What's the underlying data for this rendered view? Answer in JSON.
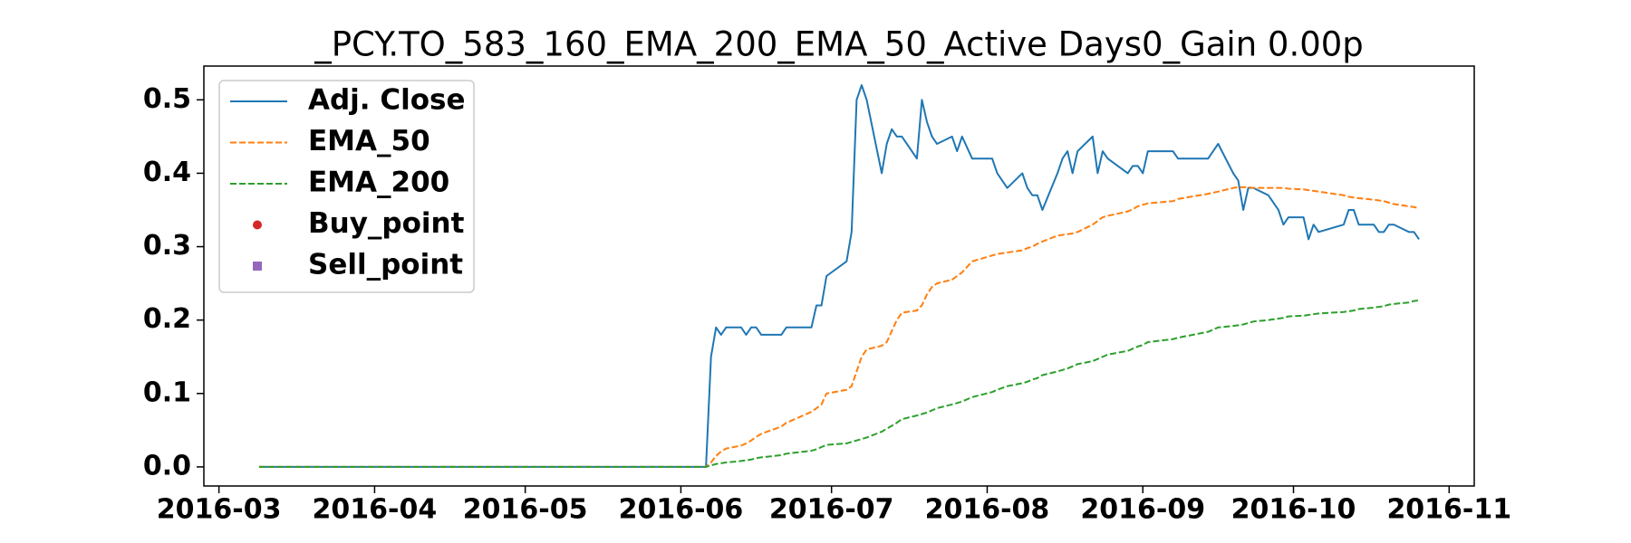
{
  "chart_data": {
    "type": "line",
    "title": "_PCY.TO_583_160_EMA_200_EMA_50_Active Days0_Gain    0.00p",
    "x": [
      "2016-03-09",
      "2016-06-06",
      "2016-06-07",
      "2016-06-08",
      "2016-06-09",
      "2016-06-10",
      "2016-06-13",
      "2016-06-14",
      "2016-06-15",
      "2016-06-16",
      "2016-06-17",
      "2016-06-21",
      "2016-06-22",
      "2016-06-27",
      "2016-06-28",
      "2016-06-29",
      "2016-06-30",
      "2016-07-04",
      "2016-07-05",
      "2016-07-06",
      "2016-07-07",
      "2016-07-08",
      "2016-07-11",
      "2016-07-12",
      "2016-07-13",
      "2016-07-14",
      "2016-07-15",
      "2016-07-18",
      "2016-07-19",
      "2016-07-20",
      "2016-07-21",
      "2016-07-22",
      "2016-07-25",
      "2016-07-26",
      "2016-07-27",
      "2016-07-29",
      "2016-08-02",
      "2016-08-03",
      "2016-08-05",
      "2016-08-08",
      "2016-08-09",
      "2016-08-10",
      "2016-08-11",
      "2016-08-12",
      "2016-08-15",
      "2016-08-16",
      "2016-08-17",
      "2016-08-18",
      "2016-08-19",
      "2016-08-22",
      "2016-08-23",
      "2016-08-24",
      "2016-08-25",
      "2016-08-29",
      "2016-08-30",
      "2016-08-31",
      "2016-09-01",
      "2016-09-02",
      "2016-09-07",
      "2016-09-08",
      "2016-09-14",
      "2016-09-16",
      "2016-09-19",
      "2016-09-20",
      "2016-09-21",
      "2016-09-22",
      "2016-09-23",
      "2016-09-26",
      "2016-09-28",
      "2016-09-29",
      "2016-09-30",
      "2016-10-03",
      "2016-10-04",
      "2016-10-05",
      "2016-10-06",
      "2016-10-11",
      "2016-10-12",
      "2016-10-13",
      "2016-10-14",
      "2016-10-17",
      "2016-10-18",
      "2016-10-19",
      "2016-10-20",
      "2016-10-21",
      "2016-10-24",
      "2016-10-25",
      "2016-10-26"
    ],
    "series": [
      {
        "name": "Adj. Close",
        "color": "#1f77b4",
        "dash": false,
        "values": [
          0,
          0,
          0.15,
          0.19,
          0.18,
          0.19,
          0.19,
          0.18,
          0.19,
          0.19,
          0.18,
          0.18,
          0.19,
          0.19,
          0.22,
          0.22,
          0.26,
          0.28,
          0.32,
          0.5,
          0.52,
          0.5,
          0.4,
          0.44,
          0.46,
          0.45,
          0.45,
          0.42,
          0.5,
          0.47,
          0.45,
          0.44,
          0.45,
          0.43,
          0.45,
          0.42,
          0.42,
          0.4,
          0.38,
          0.4,
          0.38,
          0.37,
          0.37,
          0.35,
          0.4,
          0.42,
          0.43,
          0.4,
          0.43,
          0.45,
          0.4,
          0.43,
          0.42,
          0.4,
          0.41,
          0.41,
          0.4,
          0.43,
          0.43,
          0.42,
          0.42,
          0.44,
          0.4,
          0.39,
          0.35,
          0.38,
          0.38,
          0.37,
          0.35,
          0.33,
          0.34,
          0.34,
          0.31,
          0.33,
          0.32,
          0.33,
          0.35,
          0.35,
          0.33,
          0.33,
          0.32,
          0.32,
          0.33,
          0.33,
          0.32,
          0.32,
          0.31
        ]
      },
      {
        "name": "EMA_50",
        "color": "#ff7f0e",
        "dash": true,
        "values": [
          0,
          0,
          0.006,
          0.015,
          0.021,
          0.025,
          0.029,
          0.032,
          0.036,
          0.041,
          0.045,
          0.055,
          0.06,
          0.075,
          0.08,
          0.085,
          0.1,
          0.105,
          0.11,
          0.13,
          0.15,
          0.16,
          0.165,
          0.17,
          0.185,
          0.2,
          0.21,
          0.213,
          0.22,
          0.235,
          0.245,
          0.25,
          0.255,
          0.26,
          0.265,
          0.28,
          0.288,
          0.29,
          0.292,
          0.295,
          0.298,
          0.3,
          0.304,
          0.307,
          0.315,
          0.316,
          0.317,
          0.318,
          0.32,
          0.33,
          0.335,
          0.34,
          0.342,
          0.348,
          0.351,
          0.355,
          0.357,
          0.359,
          0.362,
          0.365,
          0.372,
          0.375,
          0.38,
          0.381,
          0.381,
          0.381,
          0.38,
          0.38,
          0.38,
          0.38,
          0.379,
          0.378,
          0.377,
          0.376,
          0.375,
          0.37,
          0.368,
          0.367,
          0.366,
          0.364,
          0.363,
          0.362,
          0.36,
          0.358,
          0.355,
          0.354,
          0.352
        ]
      },
      {
        "name": "EMA_200",
        "color": "#2ca02c",
        "dash": true,
        "values": [
          0,
          0,
          0.002,
          0.004,
          0.005,
          0.006,
          0.008,
          0.009,
          0.01,
          0.012,
          0.013,
          0.016,
          0.018,
          0.022,
          0.024,
          0.027,
          0.03,
          0.032,
          0.034,
          0.036,
          0.038,
          0.04,
          0.048,
          0.052,
          0.056,
          0.06,
          0.065,
          0.07,
          0.072,
          0.074,
          0.077,
          0.08,
          0.085,
          0.087,
          0.089,
          0.095,
          0.102,
          0.105,
          0.11,
          0.114,
          0.116,
          0.119,
          0.121,
          0.125,
          0.13,
          0.132,
          0.134,
          0.137,
          0.14,
          0.144,
          0.147,
          0.15,
          0.153,
          0.158,
          0.161,
          0.164,
          0.166,
          0.17,
          0.174,
          0.176,
          0.184,
          0.19,
          0.192,
          0.193,
          0.194,
          0.196,
          0.198,
          0.2,
          0.202,
          0.203,
          0.205,
          0.206,
          0.207,
          0.208,
          0.209,
          0.211,
          0.212,
          0.213,
          0.215,
          0.217,
          0.218,
          0.219,
          0.221,
          0.222,
          0.224,
          0.226,
          0.227
        ]
      },
      {
        "name": "Buy_point",
        "color": "#d62728",
        "marker": "circle",
        "x": [],
        "values": []
      },
      {
        "name": "Sell_point",
        "color": "#9467bd",
        "marker": "square",
        "x": [],
        "values": []
      }
    ],
    "xlim": [
      "2016-02-27",
      "2016-11-06"
    ],
    "xticks": [
      {
        "value": "2016-03-01",
        "label": "2016-03"
      },
      {
        "value": "2016-04-01",
        "label": "2016-04"
      },
      {
        "value": "2016-05-01",
        "label": "2016-05"
      },
      {
        "value": "2016-06-01",
        "label": "2016-06"
      },
      {
        "value": "2016-07-01",
        "label": "2016-07"
      },
      {
        "value": "2016-08-01",
        "label": "2016-08"
      },
      {
        "value": "2016-09-01",
        "label": "2016-09"
      },
      {
        "value": "2016-10-01",
        "label": "2016-10"
      },
      {
        "value": "2016-11-01",
        "label": "2016-11"
      }
    ],
    "ylim": [
      -0.026,
      0.546
    ],
    "yticks": [
      {
        "value": 0,
        "label": "0.0"
      },
      0.1,
      0.2,
      0.3,
      0.4,
      0.5
    ],
    "grid": false,
    "legend": "upper left"
  }
}
